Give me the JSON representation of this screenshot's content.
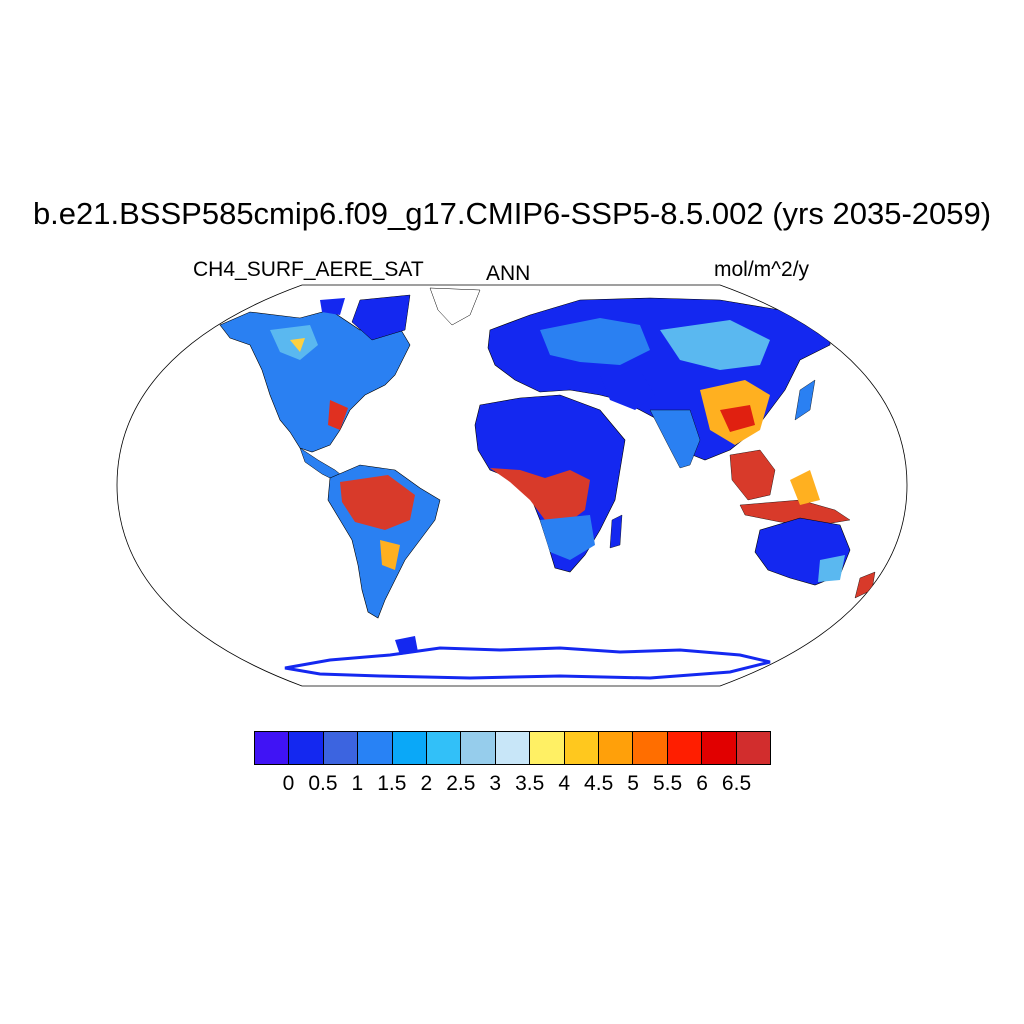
{
  "title": "b.e21.BSSP585cmip6.f09_g17.CMIP6-SSP5-8.5.002 (yrs 2035-2059)",
  "left_label": "CH4_SURF_AERE_SAT",
  "center_label": "ANN",
  "right_label": "mol/m^2/y",
  "projection": "robinson",
  "colorbar": {
    "colors": [
      "#4013f5",
      "#1428f0",
      "#3c64e0",
      "#2882f5",
      "#0aa8f8",
      "#32c0f8",
      "#96cdec",
      "#c8e6f8",
      "#fff064",
      "#ffc81e",
      "#ffa00a",
      "#ff6e00",
      "#ff1e00",
      "#e10000",
      "#d22d2d"
    ],
    "labels": [
      "0",
      "0.5",
      "1",
      "1.5",
      "2",
      "2.5",
      "3",
      "3.5",
      "4",
      "4.5",
      "5",
      "5.5",
      "6",
      "6.5"
    ]
  }
}
